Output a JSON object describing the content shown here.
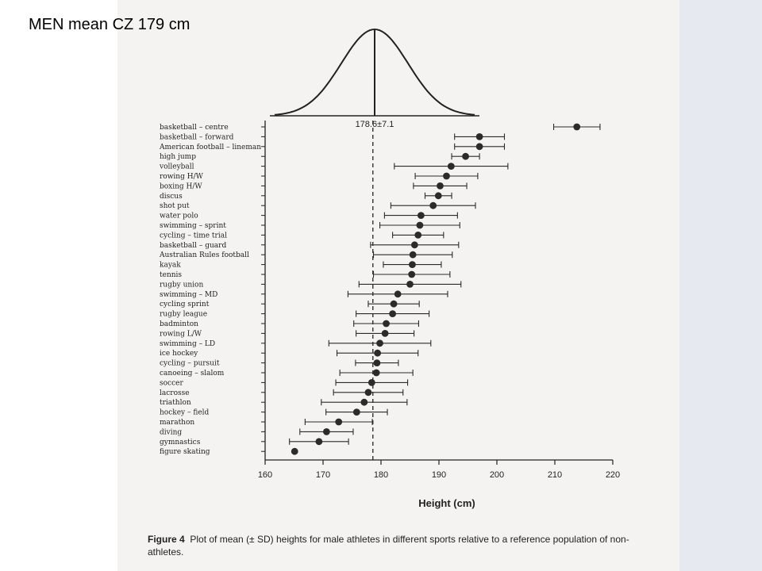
{
  "slide": {
    "title": "MEN mean CZ 179 cm"
  },
  "caption": {
    "figure_label": "Figure 4",
    "text": "Plot of mean (± SD) heights for male athletes in different sports relative to a reference population of non-athletes."
  },
  "chart_data": {
    "type": "scatter",
    "orientation": "horizontal",
    "title": "",
    "xlabel": "Height (cm)",
    "ylabel": "",
    "xlim": [
      160,
      220
    ],
    "x_ticks": [
      160,
      170,
      180,
      190,
      200,
      210,
      220
    ],
    "reference": {
      "mean": 178.6,
      "sd": 7.1,
      "label": "178.6±7.1"
    },
    "grid": false,
    "legend": "none",
    "marker_color": "#2b2b2b",
    "categories": [
      "basketball – centre",
      "basketball – forward",
      "American football – lineman",
      "high jump",
      "volleyball",
      "rowing H/W",
      "boxing H/W",
      "discus",
      "shot put",
      "water polo",
      "swimming – sprint",
      "cycling – time trial",
      "basketball – guard",
      "Australian Rules football",
      "kayak",
      "tennis",
      "rugby union",
      "swimming – MD",
      "cycling  sprint",
      "rugby league",
      "badminton",
      "rowing L/W",
      "swimming – LD",
      "ice hockey",
      "cycling – pursuit",
      "canoeing – slalom",
      "soccer",
      "lacrosse",
      "triathlon",
      "hockey – field",
      "marathon",
      "diving",
      "gymnastics",
      "figure skating"
    ],
    "means": [
      213.8,
      197.0,
      197.0,
      194.6,
      192.1,
      191.3,
      190.2,
      189.9,
      189.0,
      186.9,
      186.7,
      186.4,
      185.8,
      185.5,
      185.4,
      185.3,
      185.0,
      182.9,
      182.2,
      182.0,
      180.9,
      180.7,
      179.8,
      179.4,
      179.3,
      179.2,
      178.4,
      177.8,
      177.1,
      175.8,
      172.7,
      170.6,
      169.3,
      165.1
    ],
    "sd": [
      4.0,
      4.3,
      4.3,
      2.4,
      9.8,
      5.4,
      4.6,
      2.3,
      7.3,
      6.3,
      6.9,
      4.4,
      7.6,
      6.8,
      5.0,
      6.6,
      8.8,
      8.6,
      4.4,
      6.3,
      5.6,
      5.0,
      8.8,
      7.0,
      3.7,
      6.3,
      6.2,
      6.0,
      7.4,
      5.3,
      5.8,
      4.6,
      5.1,
      0.0
    ]
  }
}
